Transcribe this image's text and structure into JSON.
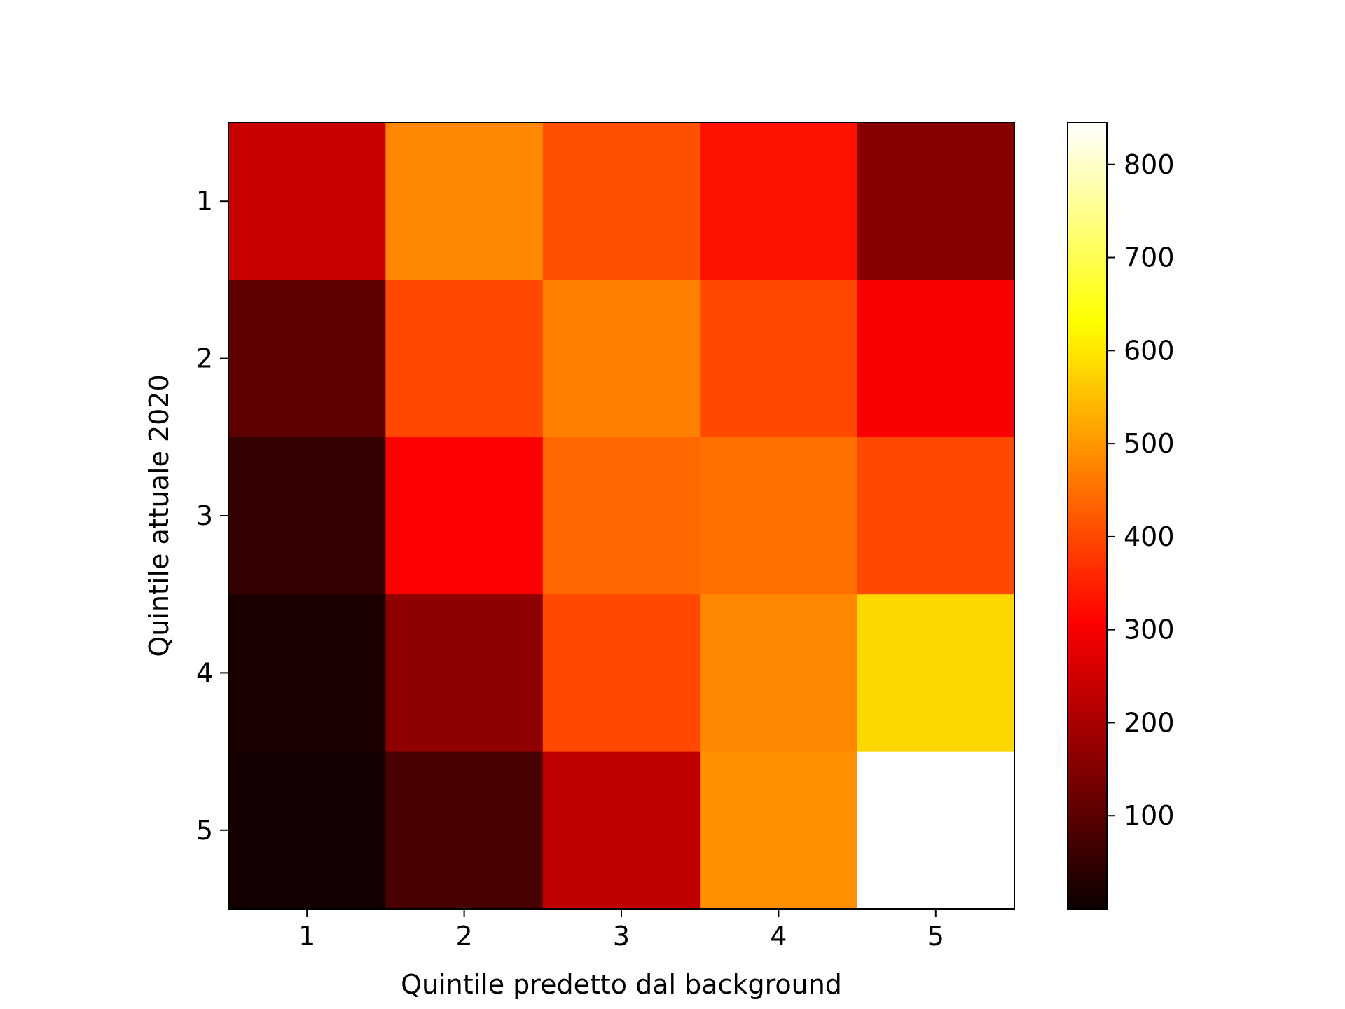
{
  "chart_data": {
    "type": "heatmap",
    "title": "",
    "xlabel": "Quintile predetto dal background",
    "ylabel": "Quintile attuale 2020",
    "x_categories": [
      "1",
      "2",
      "3",
      "4",
      "5"
    ],
    "y_categories": [
      "1",
      "2",
      "3",
      "4",
      "5"
    ],
    "values": [
      [
        230,
        480,
        410,
        330,
        150
      ],
      [
        100,
        400,
        470,
        400,
        290
      ],
      [
        50,
        300,
        440,
        450,
        400
      ],
      [
        20,
        160,
        400,
        480,
        580
      ],
      [
        10,
        75,
        220,
        490,
        845
      ]
    ],
    "colormap": "hot",
    "vmin": 0,
    "vmax": 845,
    "colorbar_ticks": [
      100,
      200,
      300,
      400,
      500,
      600,
      700,
      800
    ],
    "colorbar_tick_labels": [
      "100",
      "200",
      "300",
      "400",
      "500",
      "600",
      "700",
      "800"
    ],
    "grid": false
  }
}
